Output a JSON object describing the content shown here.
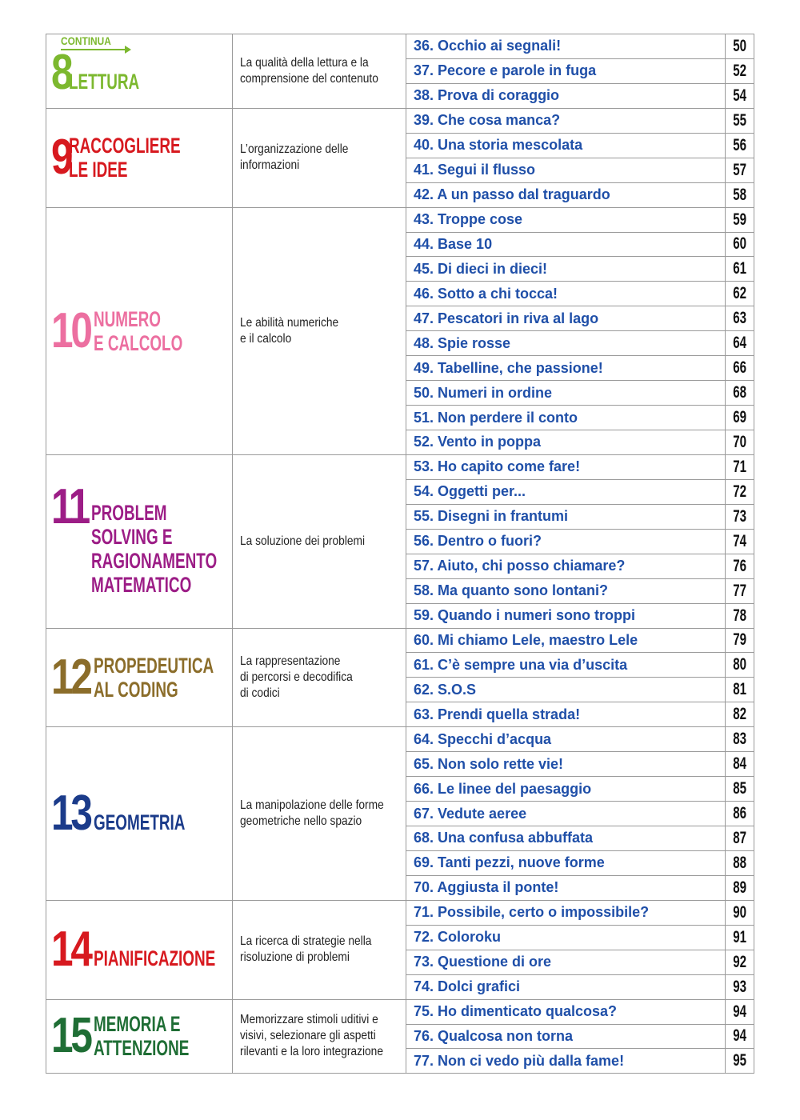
{
  "continua_label": "CONTINUA",
  "sections": [
    {
      "number": "8",
      "color": "#7cb82f",
      "title": [
        "LETTURA"
      ],
      "continua": true,
      "description": [
        "La qualità della lettura e la",
        "comprensione del contenuto"
      ],
      "items": [
        {
          "title": "36. Occhio ai segnali!",
          "page": "50"
        },
        {
          "title": "37. Pecore e parole in fuga",
          "page": "52"
        },
        {
          "title": "38. Prova di coraggio",
          "page": "54"
        }
      ]
    },
    {
      "number": "9",
      "color": "#d7191f",
      "title": [
        "RACCOGLIERE",
        "LE IDEE"
      ],
      "description": [
        "L’organizzazione delle",
        "informazioni"
      ],
      "items": [
        {
          "title": "39. Che cosa manca?",
          "page": "55"
        },
        {
          "title": "40. Una storia mescolata",
          "page": "56"
        },
        {
          "title": "41. Segui il flusso",
          "page": "57"
        },
        {
          "title": "42. A un passo dal traguardo",
          "page": "58"
        }
      ]
    },
    {
      "number": "10",
      "color": "#ec6fa0",
      "title": [
        "NUMERO",
        "E CALCOLO"
      ],
      "description": [
        "Le abilità numeriche",
        "e il calcolo"
      ],
      "items": [
        {
          "title": "43. Troppe cose",
          "page": "59"
        },
        {
          "title": "44. Base 10",
          "page": "60"
        },
        {
          "title": "45. Di dieci in dieci!",
          "page": "61"
        },
        {
          "title": "46. Sotto a chi tocca!",
          "page": "62"
        },
        {
          "title": "47. Pescatori in riva al lago",
          "page": "63"
        },
        {
          "title": "48. Spie rosse",
          "page": "64"
        },
        {
          "title": "49. Tabelline, che passione!",
          "page": "66"
        },
        {
          "title": "50. Numeri in ordine",
          "page": "68"
        },
        {
          "title": "51. Non perdere il conto",
          "page": "69"
        },
        {
          "title": "52. Vento in poppa",
          "page": "70"
        }
      ]
    },
    {
      "number": "11",
      "color": "#9c1d86",
      "title": [
        "PROBLEM",
        "SOLVING E",
        "RAGIONAMENTO",
        "MATEMATICO"
      ],
      "description": [
        "La soluzione dei problemi"
      ],
      "items": [
        {
          "title": "53. Ho capito come fare!",
          "page": "71"
        },
        {
          "title": "54. Oggetti per...",
          "page": "72"
        },
        {
          "title": "55. Disegni in frantumi",
          "page": "73"
        },
        {
          "title": "56. Dentro o fuori?",
          "page": "74"
        },
        {
          "title": "57. Aiuto, chi posso chiamare?",
          "page": "76"
        },
        {
          "title": "58. Ma quanto sono lontani?",
          "page": "77"
        },
        {
          "title": "59. Quando i numeri sono troppi",
          "page": "78"
        }
      ]
    },
    {
      "number": "12",
      "color": "#8b6d2a",
      "title": [
        "PROPEDEUTICA",
        "AL CODING"
      ],
      "description": [
        "La rappresentazione",
        "di percorsi e decodifica",
        "di codici"
      ],
      "items": [
        {
          "title": "60. Mi chiamo Lele, maestro Lele",
          "page": "79"
        },
        {
          "title": "61. C’è sempre una via d’uscita",
          "page": "80"
        },
        {
          "title": "62. S.O.S",
          "page": "81"
        },
        {
          "title": "63. Prendi quella strada!",
          "page": "82"
        }
      ]
    },
    {
      "number": "13",
      "color": "#1b3b8a",
      "title": [
        "GEOMETRIA"
      ],
      "description": [
        "La manipolazione delle forme",
        "geometriche nello spazio"
      ],
      "items": [
        {
          "title": "64. Specchi d’acqua",
          "page": "83"
        },
        {
          "title": "65. Non solo rette vie!",
          "page": "84"
        },
        {
          "title": "66. Le linee del paesaggio",
          "page": "85"
        },
        {
          "title": "67. Vedute aeree",
          "page": "86"
        },
        {
          "title": "68. Una confusa abbuffata",
          "page": "87"
        },
        {
          "title": "69. Tanti pezzi, nuove forme",
          "page": "88"
        },
        {
          "title": "70. Aggiusta il ponte!",
          "page": "89"
        }
      ]
    },
    {
      "number": "14",
      "color": "#d7191f",
      "title": [
        "PIANIFICAZIONE"
      ],
      "description": [
        "La ricerca di strategie nella",
        "risoluzione di problemi"
      ],
      "items": [
        {
          "title": "71. Possibile, certo o impossibile?",
          "page": "90"
        },
        {
          "title": "72. Coloroku",
          "page": "91"
        },
        {
          "title": "73. Questione di ore",
          "page": "92"
        },
        {
          "title": "74. Dolci grafici",
          "page": "93"
        }
      ]
    },
    {
      "number": "15",
      "color": "#1f6e35",
      "title": [
        "MEMORIA E",
        "ATTENZIONE"
      ],
      "description": [
        "Memorizzare stimoli uditivi e",
        "visivi, selezionare gli aspetti",
        "rilevanti e la loro integrazione"
      ],
      "items": [
        {
          "title": "75. Ho dimenticato qualcosa?",
          "page": "94"
        },
        {
          "title": "76. Qualcosa non torna",
          "page": "94"
        },
        {
          "title": "77. Non ci vedo più dalla fame!",
          "page": "95"
        }
      ]
    }
  ]
}
